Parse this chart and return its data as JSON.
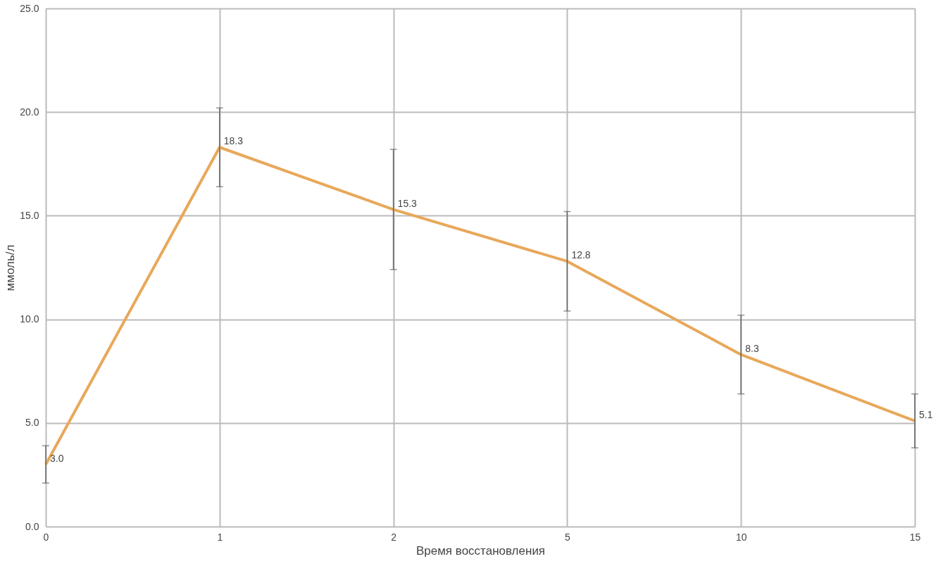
{
  "chart_data": {
    "type": "line",
    "xlabel": "Время восстановления",
    "ylabel": "ммоль/л",
    "categories": [
      "0",
      "1",
      "2",
      "5",
      "10",
      "15"
    ],
    "series": [
      {
        "color": "#e8a85a",
        "values": [
          3.0,
          18.3,
          15.3,
          12.8,
          8.3,
          5.1
        ],
        "errors": [
          0.9,
          1.9,
          2.9,
          2.4,
          1.9,
          1.3
        ],
        "value_labels": [
          "3.0",
          "18.3",
          "15.3",
          "12.8",
          "8.3",
          "5.1"
        ]
      }
    ],
    "ylim": [
      0,
      25
    ],
    "yticks": [
      {
        "value": 0,
        "label": "0.0"
      },
      {
        "value": 5,
        "label": "5.0"
      },
      {
        "value": 10,
        "label": "10.0"
      },
      {
        "value": 15,
        "label": "15.0"
      },
      {
        "value": 20,
        "label": "20.0"
      },
      {
        "value": 25,
        "label": "25.0"
      }
    ],
    "grid": true,
    "marker": "none",
    "line_style": "solid"
  }
}
